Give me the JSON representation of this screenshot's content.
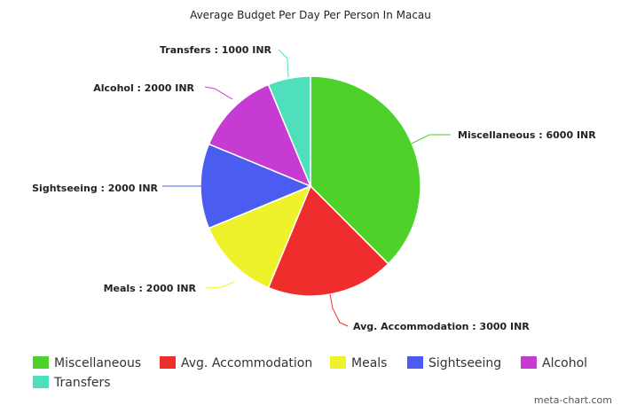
{
  "chart_data": {
    "type": "pie",
    "title": "Average Budget Per Day Per Person In Macau",
    "slices": [
      {
        "name": "Miscellaneous",
        "value": 6000,
        "label": "Miscellaneous : 6000 INR",
        "color": "#4fd12b"
      },
      {
        "name": "Avg. Accommodation",
        "value": 3000,
        "label": "Avg. Accommodation : 3000 INR",
        "color": "#ef2d2d"
      },
      {
        "name": "Meals",
        "value": 2000,
        "label": "Meals : 2000 INR",
        "color": "#eef22b"
      },
      {
        "name": "Sightseeing",
        "value": 2000,
        "label": "Sightseeing : 2000 INR",
        "color": "#4a5df0"
      },
      {
        "name": "Alcohol",
        "value": 2000,
        "label": "Alcohol : 2000 INR",
        "color": "#c63bd1"
      },
      {
        "name": "Transfers",
        "value": 1000,
        "label": "Transfers : 1000 INR",
        "color": "#4fe0bb"
      }
    ],
    "legend_position": "bottom-left"
  },
  "credit": "meta-chart.com"
}
